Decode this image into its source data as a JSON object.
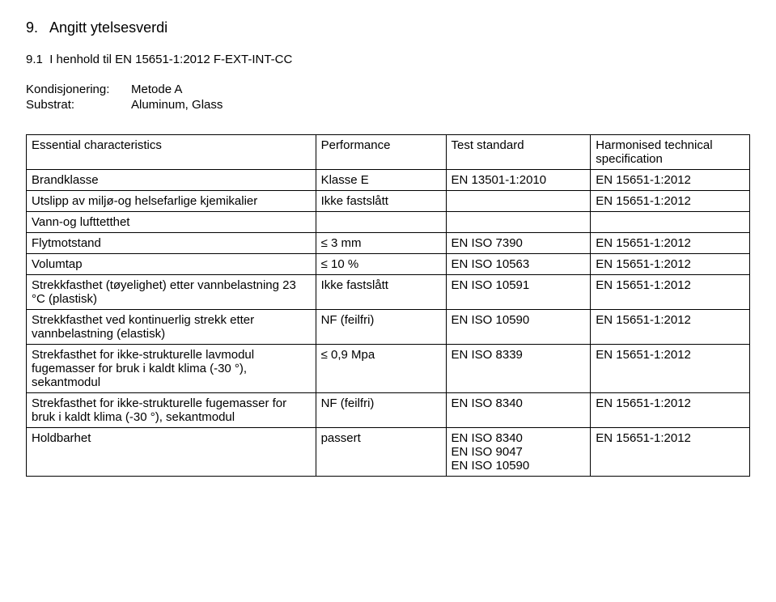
{
  "heading": {
    "number": "9.",
    "title": "Angitt ytelsesverdi"
  },
  "subsection": {
    "number": "9.1",
    "title": "I henhold til EN 15651-1:2012 F-EXT-INT-CC"
  },
  "conditioning": {
    "label_kondisjonering": "Kondisjonering:",
    "value_kondisjonering": "Metode A",
    "label_substrat": "Substrat:",
    "value_substrat": "Aluminum, Glass"
  },
  "table": {
    "headers": {
      "c1": "Essential characteristics",
      "c2": "Performance",
      "c3": "Test standard",
      "c4": "Harmonised technical specification"
    },
    "rows": [
      {
        "c1": "Brandklasse",
        "c2": "Klasse E",
        "c3": "EN 13501-1:2010",
        "c4": "EN 15651-1:2012"
      },
      {
        "c1": "Utslipp av miljø-og helsefarlige kjemikalier",
        "c2": "Ikke fastslått",
        "c3": "",
        "c4": "EN 15651-1:2012"
      },
      {
        "c1": "Vann-og lufttetthet",
        "c2": "",
        "c3": "",
        "c4": ""
      },
      {
        "c1": "Flytmotstand",
        "c2": "≤ 3 mm",
        "c3": "EN ISO 7390",
        "c4": "EN 15651-1:2012"
      },
      {
        "c1": "Volumtap",
        "c2": "≤ 10 %",
        "c3": "EN ISO 10563",
        "c4": "EN 15651-1:2012"
      },
      {
        "c1": "Strekkfasthet (tøyelighet) etter vannbelastning 23 °C (plastisk)",
        "c2": "Ikke fastslått",
        "c3": "EN ISO 10591",
        "c4": "EN 15651-1:2012"
      },
      {
        "c1": "Strekkfasthet ved kontinuerlig strekk etter vannbelastning (elastisk)",
        "c2": "NF (feilfri)",
        "c3": "EN ISO 10590",
        "c4": "EN 15651-1:2012"
      },
      {
        "c1": "Strekfasthet for ikke-strukturelle lavmodul fugemasser for bruk i kaldt klima (-30 °), sekantmodul",
        "c2": "≤ 0,9 Mpa",
        "c3": "EN ISO 8339",
        "c4": "EN 15651-1:2012"
      },
      {
        "c1": "Strekfasthet for ikke-strukturelle fugemasser for bruk i kaldt klima (-30 °), sekantmodul",
        "c2": "NF (feilfri)",
        "c3": "EN ISO 8340",
        "c4": "EN 15651-1:2012"
      },
      {
        "c1": "Holdbarhet",
        "c2": "passert",
        "c3": "EN ISO 8340\nEN ISO 9047\nEN ISO 10590",
        "c4": "EN 15651-1:2012"
      }
    ],
    "border_color": "#000000",
    "font_size": 15
  }
}
